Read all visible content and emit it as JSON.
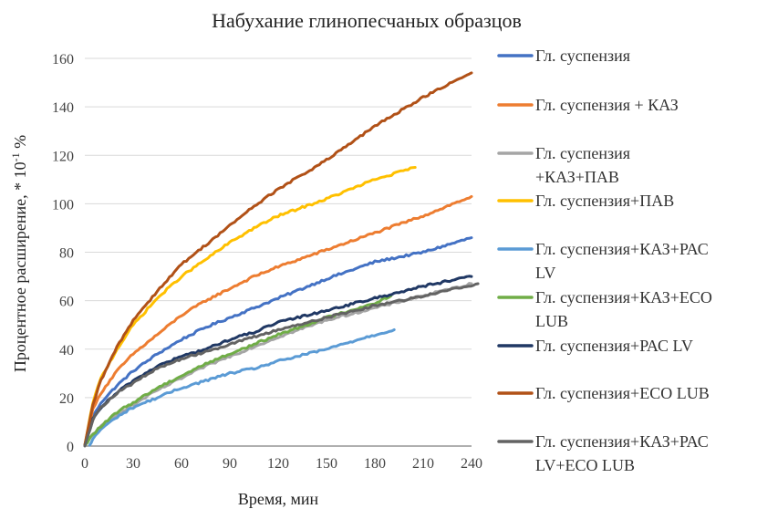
{
  "chart_data": {
    "type": "line",
    "title": "Набухание глинопесчаных образцов",
    "xlabel": "Время, мин",
    "ylabel": "Процентное расширение, * 10",
    "ylabel_sup": "-1",
    "ylabel_unit": " %",
    "xlim": [
      0,
      240
    ],
    "ylim": [
      0,
      160
    ],
    "x_ticks": [
      "0",
      "30",
      "60",
      "90",
      "120",
      "150",
      "180",
      "210",
      "240"
    ],
    "y_ticks": [
      "0",
      "20",
      "40",
      "60",
      "80",
      "100",
      "120",
      "140",
      "160"
    ],
    "grid": "horizontal",
    "legend_position": "right",
    "series": [
      {
        "name": "Гл. суспензия",
        "color": "#4472c4",
        "points": [
          [
            0,
            0
          ],
          [
            5,
            12
          ],
          [
            10,
            18
          ],
          [
            20,
            25
          ],
          [
            30,
            31
          ],
          [
            45,
            38
          ],
          [
            60,
            44
          ],
          [
            75,
            49
          ],
          [
            90,
            53
          ],
          [
            105,
            57
          ],
          [
            120,
            61
          ],
          [
            150,
            69
          ],
          [
            180,
            76
          ],
          [
            210,
            80
          ],
          [
            240,
            86
          ]
        ]
      },
      {
        "name": "Гл. суспензия + КАЗ",
        "color": "#ed7d31",
        "points": [
          [
            0,
            0
          ],
          [
            5,
            15
          ],
          [
            10,
            22
          ],
          [
            20,
            31
          ],
          [
            30,
            38
          ],
          [
            45,
            46
          ],
          [
            60,
            54
          ],
          [
            75,
            60
          ],
          [
            90,
            65
          ],
          [
            105,
            70
          ],
          [
            120,
            74
          ],
          [
            150,
            81
          ],
          [
            180,
            88
          ],
          [
            210,
            95
          ],
          [
            240,
            103
          ]
        ]
      },
      {
        "name": "Гл. суспензия +КАЗ+ПАВ",
        "color": "#a5a5a5",
        "points": [
          [
            0,
            0
          ],
          [
            5,
            5
          ],
          [
            10,
            8
          ],
          [
            20,
            13
          ],
          [
            30,
            17
          ],
          [
            45,
            23
          ],
          [
            60,
            28
          ],
          [
            75,
            33
          ],
          [
            90,
            37
          ],
          [
            105,
            41
          ],
          [
            120,
            45
          ],
          [
            150,
            52
          ],
          [
            180,
            57
          ],
          [
            210,
            62
          ],
          [
            240,
            67
          ]
        ]
      },
      {
        "name": "Гл. суспензия+ПАВ",
        "color": "#ffc000",
        "points": [
          [
            0,
            0
          ],
          [
            5,
            18
          ],
          [
            10,
            28
          ],
          [
            20,
            40
          ],
          [
            30,
            50
          ],
          [
            45,
            61
          ],
          [
            60,
            70
          ],
          [
            75,
            77
          ],
          [
            90,
            84
          ],
          [
            105,
            90
          ],
          [
            120,
            95
          ],
          [
            150,
            102
          ],
          [
            180,
            110
          ],
          [
            205,
            115
          ]
        ]
      },
      {
        "name": "Гл. суспензия+КАЗ+РАС LV",
        "color": "#5b9bd5",
        "points": [
          [
            3,
            0
          ],
          [
            5,
            3
          ],
          [
            10,
            7
          ],
          [
            20,
            12
          ],
          [
            30,
            16
          ],
          [
            45,
            20
          ],
          [
            60,
            24
          ],
          [
            75,
            27
          ],
          [
            90,
            30
          ],
          [
            105,
            32
          ],
          [
            120,
            35
          ],
          [
            150,
            40
          ],
          [
            175,
            45
          ],
          [
            192,
            48
          ]
        ]
      },
      {
        "name": "Гл. суспензия+КАЗ+ЕСО LUB",
        "color": "#70ad47",
        "points": [
          [
            0,
            0
          ],
          [
            5,
            5
          ],
          [
            10,
            8
          ],
          [
            20,
            14
          ],
          [
            30,
            18
          ],
          [
            45,
            24
          ],
          [
            60,
            29
          ],
          [
            75,
            34
          ],
          [
            90,
            38
          ],
          [
            105,
            42
          ],
          [
            120,
            46
          ],
          [
            150,
            53
          ],
          [
            180,
            59
          ],
          [
            190,
            62
          ]
        ]
      },
      {
        "name": "Гл. суспензия+РАС LV",
        "color": "#203864",
        "points": [
          [
            0,
            0
          ],
          [
            5,
            11
          ],
          [
            10,
            16
          ],
          [
            20,
            22
          ],
          [
            30,
            27
          ],
          [
            45,
            33
          ],
          [
            60,
            37
          ],
          [
            75,
            40
          ],
          [
            90,
            44
          ],
          [
            105,
            47
          ],
          [
            120,
            51
          ],
          [
            150,
            56
          ],
          [
            180,
            61
          ],
          [
            210,
            66
          ],
          [
            240,
            70
          ]
        ]
      },
      {
        "name": "Гл. суспензия+ЕСО LUB",
        "color": "#b15117",
        "points": [
          [
            0,
            0
          ],
          [
            5,
            17
          ],
          [
            10,
            27
          ],
          [
            20,
            41
          ],
          [
            30,
            52
          ],
          [
            45,
            64
          ],
          [
            60,
            75
          ],
          [
            75,
            83
          ],
          [
            90,
            91
          ],
          [
            105,
            99
          ],
          [
            120,
            106
          ],
          [
            150,
            118
          ],
          [
            180,
            132
          ],
          [
            210,
            144
          ],
          [
            240,
            154
          ]
        ]
      },
      {
        "name": "Гл. суспензия+КАЗ+РАС LV+ЕСО LUB",
        "color": "#636363",
        "points": [
          [
            0,
            0
          ],
          [
            5,
            11
          ],
          [
            10,
            16
          ],
          [
            20,
            22
          ],
          [
            30,
            26
          ],
          [
            45,
            32
          ],
          [
            60,
            36
          ],
          [
            75,
            39
          ],
          [
            90,
            42
          ],
          [
            105,
            45
          ],
          [
            120,
            48
          ],
          [
            150,
            53
          ],
          [
            180,
            58
          ],
          [
            210,
            62
          ],
          [
            244,
            67
          ]
        ]
      }
    ]
  },
  "legend": [
    {
      "color": "#4472c4",
      "lines": [
        "Гл. суспензия"
      ]
    },
    {
      "color": "#ed7d31",
      "lines": [
        "Гл. суспензия + КАЗ"
      ]
    },
    {
      "color": "#a5a5a5",
      "lines": [
        "Гл. суспензия",
        "+КАЗ+ПАВ"
      ]
    },
    {
      "color": "#ffc000",
      "lines": [
        "Гл. суспензия+ПАВ"
      ]
    },
    {
      "color": "#5b9bd5",
      "lines": [
        "Гл. суспензия+КАЗ+РАС",
        "LV"
      ]
    },
    {
      "color": "#70ad47",
      "lines": [
        "Гл. суспензия+КАЗ+ЕСО",
        "LUB"
      ]
    },
    {
      "color": "#203864",
      "lines": [
        "Гл. суспензия+РАС LV"
      ]
    },
    {
      "color": "#b15117",
      "lines": [
        "Гл. суспензия+ЕСО LUB"
      ]
    },
    {
      "color": "#636363",
      "lines": [
        "Гл. суспензия+КАЗ+РАС",
        "LV+ЕСО LUB"
      ]
    }
  ]
}
